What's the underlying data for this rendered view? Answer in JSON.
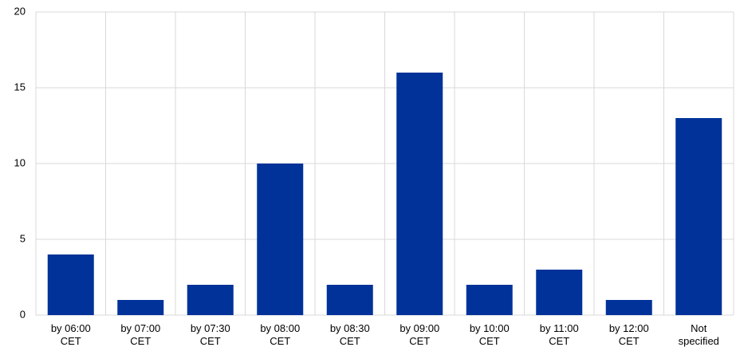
{
  "chart_data": {
    "type": "bar",
    "categories": [
      "by 06:00 CET",
      "by 07:00 CET",
      "by 07:30 CET",
      "by 08:00 CET",
      "by 08:30 CET",
      "by 09:00 CET",
      "by 10:00 CET",
      "by 11:00 CET",
      "by 12:00 CET",
      "Not specified"
    ],
    "values": [
      4,
      1,
      2,
      10,
      2,
      16,
      2,
      3,
      1,
      13
    ],
    "color": "#003299",
    "ylim": [
      0,
      20
    ],
    "yticks": [
      0,
      5,
      10,
      15,
      20
    ],
    "grid": true
  }
}
